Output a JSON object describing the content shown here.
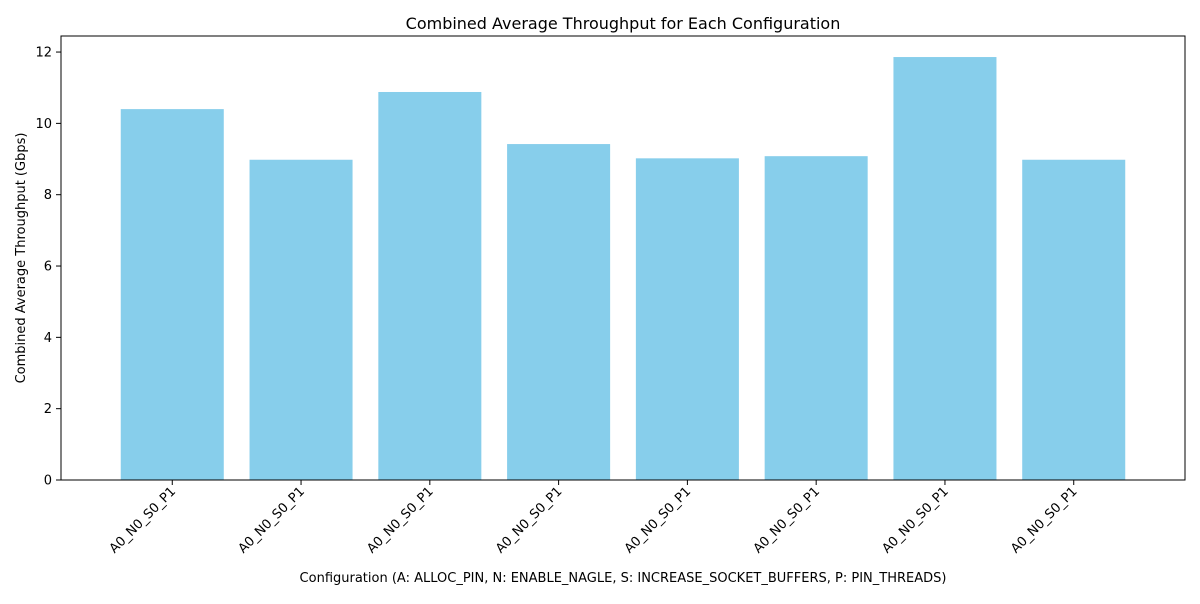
{
  "chart_data": {
    "type": "bar",
    "title": "Combined Average Throughput for Each Configuration",
    "xlabel": "Configuration (A: ALLOC_PIN, N: ENABLE_NAGLE, S: INCREASE_SOCKET_BUFFERS, P: PIN_THREADS)",
    "ylabel": "Combined Average Throughput (Gbps)",
    "categories": [
      "A0_N0_S0_P1",
      "A0_N0_S0_P1",
      "A0_N0_S0_P1",
      "A0_N0_S0_P1",
      "A0_N0_S0_P1",
      "A0_N0_S0_P1",
      "A0_N0_S0_P1",
      "A0_N0_S0_P1"
    ],
    "values": [
      10.4,
      8.98,
      10.88,
      9.42,
      9.02,
      9.08,
      11.86,
      8.98
    ],
    "ylim": [
      0,
      12.45
    ],
    "yticks": [
      0,
      2,
      4,
      6,
      8,
      10,
      12
    ],
    "grid": false,
    "legend": null,
    "bar_color": "#87ceeb"
  }
}
